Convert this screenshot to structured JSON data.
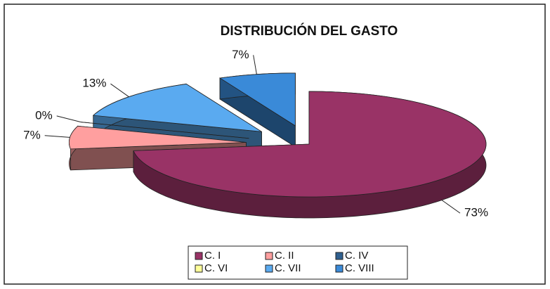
{
  "chart_data": {
    "type": "pie3d",
    "title": "DISTRIBUCIÓN DEL GASTO",
    "categories": [
      "C. I",
      "C. II",
      "C. IV",
      "C. VI",
      "C. VII",
      "C. VIII"
    ],
    "values": [
      73,
      7,
      0,
      0,
      13,
      7
    ],
    "value_labels": [
      "73%",
      "7%",
      "0%",
      null,
      "13%",
      "7%"
    ],
    "colors": [
      "#993366",
      "#ff9f9f",
      "#2f5f8f",
      "#ffff99",
      "#5aaaf0",
      "#3a8ad8"
    ],
    "legend": "bottom"
  }
}
